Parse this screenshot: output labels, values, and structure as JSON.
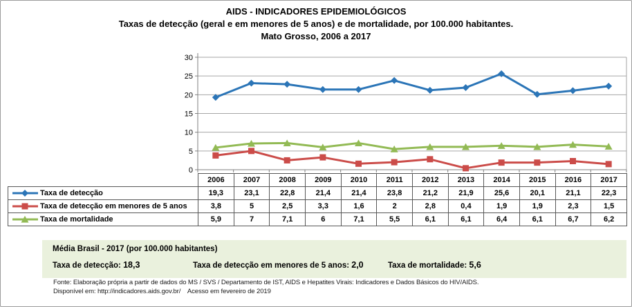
{
  "title": {
    "line1": "AIDS - INDICADORES EPIDEMIOLÓGICOS",
    "line2": "Taxas de detecção (geral e em menores de 5 anos) e de mortalidade, por 100.000 habitantes.",
    "line3": "Mato Grosso, 2006 a 2017"
  },
  "chart_data": {
    "type": "line",
    "title": "AIDS - INDICADORES EPIDEMIOLÓGICOS — Taxas de detecção (geral e em menores de 5 anos) e de mortalidade, por 100.000 habitantes. Mato Grosso, 2006 a 2017",
    "categories": [
      "2006",
      "2007",
      "2008",
      "2009",
      "2010",
      "2011",
      "2012",
      "2013",
      "2014",
      "2015",
      "2016",
      "2017"
    ],
    "series": [
      {
        "name": "Taxa de detecção",
        "color": "#2B75B7",
        "marker": "diamond",
        "values": [
          19.3,
          23.1,
          22.8,
          21.4,
          21.4,
          23.8,
          21.2,
          21.9,
          25.6,
          20.1,
          21.1,
          22.3
        ],
        "labels": [
          "19,3",
          "23,1",
          "22,8",
          "21,4",
          "21,4",
          "23,8",
          "21,2",
          "21,9",
          "25,6",
          "20,1",
          "21,1",
          "22,3"
        ]
      },
      {
        "name": "Taxa de detecção em menores de 5 anos",
        "color": "#CB4C49",
        "marker": "square",
        "values": [
          3.8,
          5,
          2.5,
          3.3,
          1.6,
          2,
          2.8,
          0.4,
          1.9,
          1.9,
          2.3,
          1.5
        ],
        "labels": [
          "3,8",
          "5",
          "2,5",
          "3,3",
          "1,6",
          "2",
          "2,8",
          "0,4",
          "1,9",
          "1,9",
          "2,3",
          "1,5"
        ]
      },
      {
        "name": "Taxa de mortalidade",
        "color": "#92BA54",
        "marker": "triangle",
        "values": [
          5.9,
          7,
          7.1,
          6,
          7.1,
          5.5,
          6.1,
          6.1,
          6.4,
          6.1,
          6.7,
          6.2
        ],
        "labels": [
          "5,9",
          "7",
          "7,1",
          "6",
          "7,1",
          "5,5",
          "6,1",
          "6,1",
          "6,4",
          "6,1",
          "6,7",
          "6,2"
        ]
      }
    ],
    "xlabel": "",
    "ylabel": "",
    "ylim": [
      0,
      30
    ],
    "yticks": [
      0,
      5,
      10,
      15,
      20,
      25,
      30
    ],
    "ytick_labels": [
      "0",
      "5",
      "10",
      "15",
      "20",
      "25",
      "30"
    ],
    "grid": true,
    "grid_color": "#A6A6A6",
    "axis_color": "#7F7F7F",
    "legend_position": "table-left"
  },
  "summary_box": {
    "title": "Média Brasil - 2017 (por 100.000 habitantes)",
    "items": [
      {
        "label": "Taxa de detecção:",
        "value": "18,3"
      },
      {
        "label": "Taxa de detecção em menores de 5 anos:",
        "value": "2,0"
      },
      {
        "label": "Taxa de mortalidade:",
        "value": "5,6"
      }
    ],
    "background": "#EAF1DD"
  },
  "footer": {
    "line1": "Fonte: Elaboração própria a partir de dados do MS / SVS / Departamento de IST, AIDS e Hepatites Virais: Indicadores e Dados Básicos do HIV/AIDS.",
    "line2": "Disponível em: http://indicadores.aids.gov.br/    Acesso em fevereiro de 2019"
  }
}
